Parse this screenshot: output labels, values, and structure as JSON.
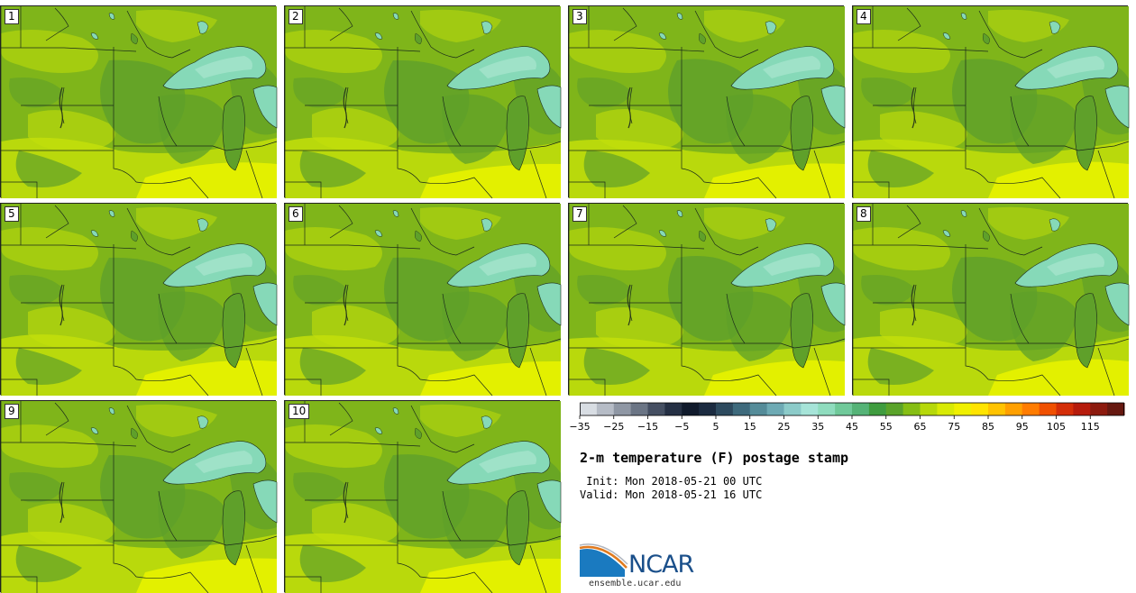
{
  "product": {
    "title": "2-m temperature (F) postage stamp",
    "init_line": " Init: Mon 2018-05-21 00 UTC",
    "valid_line": "Valid: Mon 2018-05-21 16 UTC"
  },
  "members": [
    "1",
    "2",
    "3",
    "4",
    "5",
    "6",
    "7",
    "8",
    "9",
    "10"
  ],
  "colorbar": {
    "ticks": [
      "-35",
      "-25",
      "-15",
      "-5",
      "5",
      "15",
      "25",
      "35",
      "45",
      "55",
      "65",
      "75",
      "85",
      "95",
      "105",
      "115"
    ],
    "colors": [
      "#d8dde3",
      "#b6bcc6",
      "#8f97a4",
      "#6b7585",
      "#454f62",
      "#253044",
      "#101a2c",
      "#1b2b40",
      "#2d4a5e",
      "#3e6a7c",
      "#558c99",
      "#6eaab4",
      "#8ccbc9",
      "#a6e4d8",
      "#8fdcbe",
      "#70c99a",
      "#55b377",
      "#3f9c3f",
      "#5aa32a",
      "#86be14",
      "#b6d80a",
      "#d8ea05",
      "#f0f000",
      "#ffe400",
      "#ffc300",
      "#ffa000",
      "#ff7c00",
      "#f05000",
      "#d42e08",
      "#b61b0c",
      "#8c1a0e",
      "#661810"
    ]
  },
  "colors": {
    "base_green": "#7fb51a",
    "dark_green": "#5fa02a",
    "yellow_green": "#c3df0a",
    "yellow": "#e3f000",
    "lake": "#86d9b8",
    "lake_light": "#a9e6cf",
    "border": "#1a2a1a"
  },
  "logo": {
    "name": "NCAR",
    "site": "ensemble.ucar.edu"
  }
}
